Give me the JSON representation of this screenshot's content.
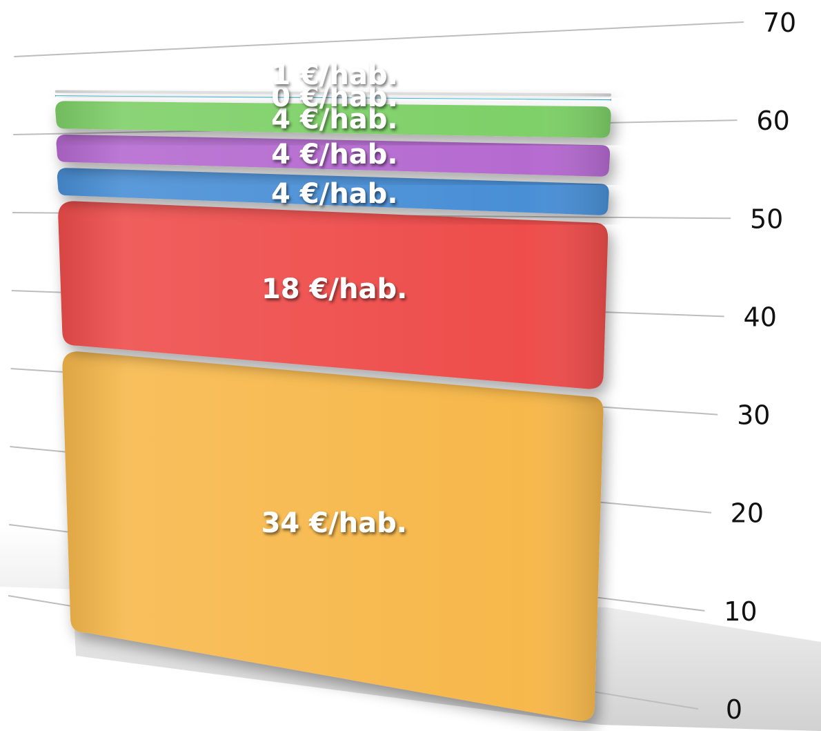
{
  "chart_data": {
    "type": "bar",
    "subtype": "stacked-3d",
    "categories": [
      ""
    ],
    "series": [
      {
        "values": [
          34
        ],
        "label": "34 €/hab.",
        "color": "#F7B84B"
      },
      {
        "values": [
          18
        ],
        "label": "18 €/hab.",
        "color": "#EE4D4B"
      },
      {
        "values": [
          4
        ],
        "label": "4 €/hab.",
        "color": "#4A8FD6"
      },
      {
        "values": [
          4
        ],
        "label": "4 €/hab.",
        "color": "#B56AD0"
      },
      {
        "values": [
          4
        ],
        "label": "4 €/hab.",
        "color": "#7ED068"
      },
      {
        "values": [
          0.3
        ],
        "label": "0 €/hab.",
        "color": "#2BB7D6"
      },
      {
        "values": [
          0.7
        ],
        "label": "1 €/hab.",
        "color": "#DCDCDC"
      }
    ],
    "y_ticks": [
      "0",
      "10",
      "20",
      "30",
      "40",
      "50",
      "60",
      "70"
    ],
    "ylim": [
      0,
      70
    ],
    "grid": true,
    "legend": "none",
    "title": "",
    "xlabel": "",
    "ylabel": ""
  }
}
